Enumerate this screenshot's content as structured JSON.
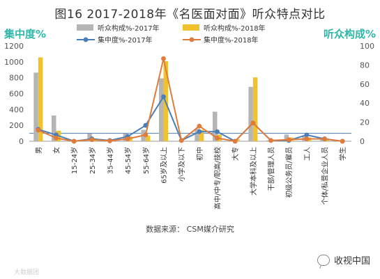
{
  "figure_title": "图16  2017-2018年《名医面对面》听众特点对比",
  "source": "数据来源：  CSM媒介研究",
  "watermark": "大数据团",
  "brand": "收视中国",
  "chart_data": {
    "type": "bar",
    "left_axis_title": "集中度%",
    "right_axis_title": "听众构成%",
    "left_ylim": [
      0,
      1200
    ],
    "left_ticks": [
      0,
      200,
      400,
      600,
      800,
      1000,
      1200
    ],
    "right_ylim": [
      0,
      100
    ],
    "right_ticks": [
      0,
      20,
      40,
      60,
      80,
      100
    ],
    "categories": [
      "男",
      "女",
      "15-24岁",
      "25-34岁",
      "35-44岁",
      "45-54岁",
      "55-64岁",
      "65岁及以上",
      "小学及以下",
      "初中",
      "高中/中专/职高/技校",
      "大专",
      "大学本科及以上",
      "干部/管理人员",
      "初级公务员/雇员",
      "工人",
      "个体/私营企业人员",
      "学生"
    ],
    "reference_line": 100,
    "series": [
      {
        "name": "听众构成%-2017年",
        "kind": "bar",
        "axis": "right",
        "color": "#b5b5b5",
        "values": [
          72,
          27,
          0,
          8,
          1,
          8,
          12,
          66,
          0,
          13,
          31,
          2,
          57,
          1,
          7,
          6,
          2,
          0
        ]
      },
      {
        "name": "听众构成%-2018年",
        "kind": "bar",
        "axis": "right",
        "color": "#f2c12e",
        "values": [
          88,
          11,
          0,
          3,
          1,
          5,
          6,
          84,
          0,
          12,
          7,
          2,
          67,
          1,
          4,
          4,
          2,
          0
        ]
      },
      {
        "name": "集中度%-2017年",
        "kind": "line",
        "axis": "left",
        "color": "#4a7ebb",
        "values": [
          150,
          80,
          0,
          30,
          10,
          60,
          200,
          560,
          10,
          120,
          120,
          0,
          230,
          10,
          10,
          80,
          30,
          0
        ]
      },
      {
        "name": "集中度%-2018年",
        "kind": "line",
        "axis": "left",
        "color": "#e07b39",
        "values": [
          140,
          40,
          0,
          20,
          5,
          30,
          80,
          1040,
          10,
          190,
          40,
          0,
          230,
          10,
          20,
          30,
          30,
          0
        ]
      }
    ]
  }
}
